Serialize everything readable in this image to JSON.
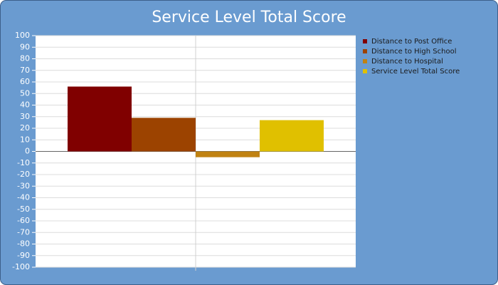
{
  "chart_data": {
    "type": "bar",
    "title": "Service Level Total Score",
    "categories": [
      null
    ],
    "series": [
      {
        "name": "Distance to Post Office",
        "color": "#800000",
        "values": [
          56
        ]
      },
      {
        "name": "Distance to High School",
        "color": "#9c4300",
        "values": [
          29
        ]
      },
      {
        "name": "Distance to Hospital",
        "color": "#c08212",
        "values": [
          -5
        ]
      },
      {
        "name": "Service Level Total Score",
        "color": "#e0c000",
        "values": [
          27
        ]
      }
    ],
    "ylim": [
      -100,
      100
    ],
    "yticks": [
      -100,
      -90,
      -80,
      -70,
      -60,
      -50,
      -40,
      -30,
      -20,
      -10,
      0,
      10,
      20,
      30,
      40,
      50,
      60,
      70,
      80,
      90,
      100
    ],
    "grid": true,
    "legend": "top-right"
  }
}
